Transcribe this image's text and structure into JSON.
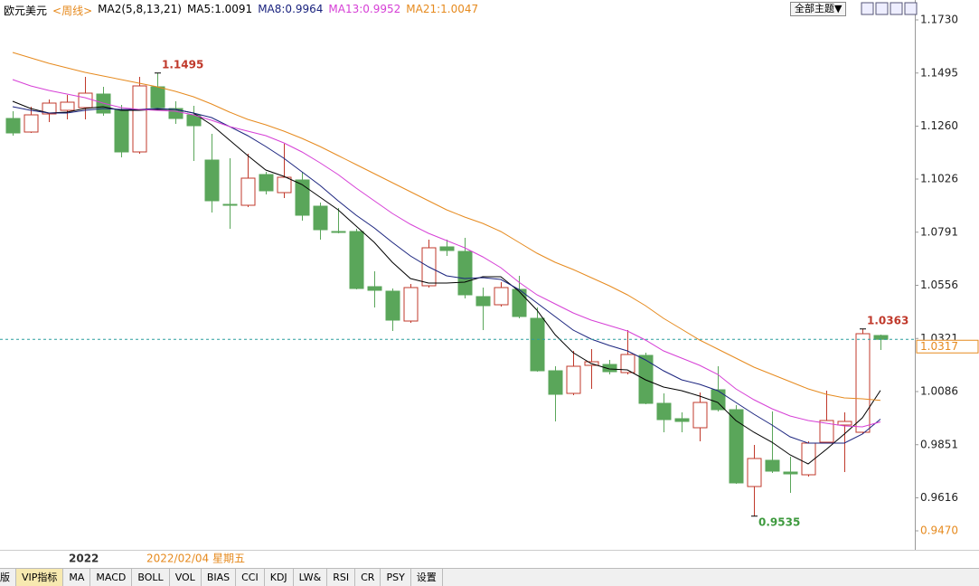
{
  "header": {
    "symbol": "欧元美元",
    "period": "<周线>",
    "indicator": "MA2(5,8,13,21)",
    "theme_button": "全部主题▼"
  },
  "chart_data": {
    "type": "candlestick",
    "categories": [
      null,
      null,
      null,
      null,
      null,
      null,
      null,
      null,
      null,
      null,
      null,
      null,
      null,
      null,
      null,
      null,
      null,
      null,
      null,
      null,
      null,
      null,
      null,
      null,
      null,
      null,
      null,
      null,
      null,
      null,
      null,
      null,
      null,
      null,
      null,
      null,
      null,
      null,
      null,
      null,
      null,
      null,
      null,
      null,
      null,
      null,
      null,
      null,
      null
    ],
    "open": [
      1.1294,
      1.1234,
      1.1314,
      1.133,
      1.1342,
      1.1402,
      1.1334,
      1.1146,
      1.1434,
      1.1338,
      1.131,
      1.111,
      1.0914,
      1.091,
      1.1046,
      1.0966,
      1.1022,
      1.0906,
      1.0794,
      1.0794,
      1.055,
      1.053,
      1.0398,
      1.0554,
      1.0726,
      1.0706,
      1.0506,
      1.047,
      1.0538,
      1.041,
      1.0178,
      1.0078,
      1.0202,
      1.0206,
      1.017,
      1.0246,
      1.0034,
      0.9966,
      0.9926,
      1.0094,
      1.0006,
      0.9666,
      0.9782,
      0.973,
      0.9718,
      0.9862,
      0.9938,
      0.9906,
      1.0334
    ],
    "close": [
      1.123,
      1.131,
      1.1362,
      1.1366,
      1.1406,
      1.1318,
      1.1146,
      1.1438,
      1.1342,
      1.1294,
      1.1262,
      1.093,
      1.091,
      1.103,
      1.0974,
      1.1034,
      1.0866,
      1.0802,
      1.079,
      1.0542,
      1.0534,
      1.0402,
      1.0546,
      1.0722,
      1.071,
      1.0514,
      1.0466,
      1.0546,
      1.0418,
      1.0178,
      1.0074,
      1.0198,
      1.0218,
      1.0174,
      1.025,
      1.0034,
      0.9962,
      0.9954,
      1.0038,
      1.0006,
      0.9682,
      0.979,
      0.9734,
      0.9722,
      0.9858,
      0.9958,
      0.9954,
      1.0342,
      1.0317
    ],
    "high": [
      1.1326,
      1.1346,
      1.1378,
      1.1398,
      1.1478,
      1.1434,
      1.1354,
      1.1478,
      1.1495,
      1.137,
      1.135,
      1.1226,
      1.1118,
      1.1138,
      1.1058,
      1.1182,
      1.1058,
      1.0922,
      1.0898,
      1.0806,
      1.0618,
      1.0542,
      1.0562,
      1.0758,
      1.0758,
      1.0766,
      1.0546,
      1.057,
      1.0598,
      1.0458,
      1.0198,
      1.0266,
      1.0274,
      1.0226,
      1.0358,
      1.0258,
      1.0078,
      0.9994,
      1.0082,
      1.0198,
      1.0026,
      0.985,
      0.9998,
      0.9798,
      0.9866,
      1.009,
      0.9994,
      1.0363,
      1.0338
    ],
    "low": [
      1.1218,
      1.123,
      1.1278,
      1.129,
      1.129,
      1.1306,
      1.1122,
      1.1138,
      1.133,
      1.127,
      1.1106,
      1.0878,
      1.0806,
      1.0902,
      1.0958,
      1.0942,
      1.0842,
      1.0758,
      1.0786,
      1.0538,
      1.0458,
      1.0354,
      1.039,
      1.0546,
      1.0686,
      1.0498,
      1.0358,
      1.0462,
      1.041,
      1.0174,
      0.9954,
      1.007,
      1.0098,
      1.0162,
      1.0162,
      1.003,
      0.9906,
      0.9906,
      0.9866,
      0.9998,
      0.9678,
      0.9535,
      0.9726,
      0.9638,
      0.971,
      0.9858,
      0.973,
      0.9898,
      1.027
    ],
    "up_color": "#c0392b",
    "down_color": "#5aa65a",
    "series": [
      {
        "name": "MA5:1.0091",
        "color": "#000000",
        "values": [
          1.137,
          1.1338,
          1.1318,
          1.1322,
          1.1338,
          1.1346,
          1.133,
          1.133,
          1.1334,
          1.1334,
          1.1318,
          1.1266,
          1.1198,
          1.113,
          1.1066,
          1.1038,
          1.1002,
          1.0946,
          1.089,
          1.0818,
          1.0746,
          1.0658,
          1.0586,
          1.0566,
          1.0566,
          1.057,
          1.0594,
          1.0594,
          1.053,
          1.0446,
          1.0338,
          1.0258,
          1.021,
          1.0186,
          1.0182,
          1.0138,
          1.0106,
          1.009,
          1.0066,
          1.0038,
          0.9958,
          0.9906,
          0.9862,
          0.9806,
          0.9766,
          0.983,
          0.9898,
          0.997,
          1.0091
        ]
      },
      {
        "name": "MA8:0.9964",
        "color": "#1a237e",
        "values": [
          1.1346,
          1.133,
          1.1318,
          1.1318,
          1.133,
          1.1338,
          1.1334,
          1.1334,
          1.1338,
          1.1334,
          1.1318,
          1.1298,
          1.1258,
          1.1218,
          1.117,
          1.1118,
          1.1058,
          1.0998,
          1.093,
          1.0866,
          1.081,
          1.0746,
          1.0686,
          1.0638,
          1.0598,
          1.0586,
          1.059,
          1.0582,
          1.0538,
          1.0478,
          1.0418,
          1.0358,
          1.0318,
          1.029,
          1.0266,
          1.0226,
          1.0178,
          1.0138,
          1.0118,
          1.009,
          1.0038,
          0.9986,
          0.9938,
          0.9886,
          0.9858,
          0.9858,
          0.9858,
          0.9898,
          0.9964
        ]
      },
      {
        "name": "MA13:0.9952",
        "color": "#d63fd6",
        "values": [
          1.1466,
          1.1438,
          1.1418,
          1.1402,
          1.1386,
          1.1362,
          1.1342,
          1.1334,
          1.133,
          1.1326,
          1.131,
          1.1286,
          1.1258,
          1.1238,
          1.1218,
          1.1186,
          1.1146,
          1.1098,
          1.1046,
          1.0986,
          1.093,
          1.0874,
          1.0826,
          1.0786,
          1.0754,
          1.0722,
          1.0682,
          1.0634,
          1.057,
          1.0514,
          1.0474,
          1.0434,
          1.0402,
          1.0378,
          1.0354,
          1.0314,
          1.0266,
          1.0234,
          1.0202,
          1.0162,
          1.0098,
          1.005,
          1.001,
          0.9978,
          0.9958,
          0.9946,
          0.9934,
          0.993,
          0.9952
        ]
      },
      {
        "name": "MA21:1.0047",
        "color": "#e68a1e",
        "values": [
          1.1586,
          1.1562,
          1.1538,
          1.1518,
          1.1498,
          1.1482,
          1.1466,
          1.145,
          1.1434,
          1.1414,
          1.139,
          1.1358,
          1.1322,
          1.129,
          1.1266,
          1.1238,
          1.1206,
          1.117,
          1.113,
          1.109,
          1.105,
          1.101,
          1.097,
          1.093,
          1.089,
          1.0858,
          1.083,
          1.0794,
          1.0746,
          1.0698,
          1.0658,
          1.0626,
          1.059,
          1.0554,
          1.0514,
          1.0466,
          1.041,
          1.0362,
          1.0314,
          1.0274,
          1.0234,
          1.0194,
          1.0162,
          1.013,
          1.0098,
          1.0074,
          1.0058,
          1.0054,
          1.0047
        ]
      }
    ],
    "annotations": [
      {
        "text": "1.1495",
        "value": 1.1495
      },
      {
        "text": "0.9535",
        "value": 0.9535
      },
      {
        "text": "1.0363",
        "value": 1.0363
      }
    ],
    "last_price": {
      "value": 1.0317,
      "label": "1.0317"
    },
    "ylim": [
      0.9386,
      1.1818
    ],
    "yticks": [
      {
        "value": 1.173,
        "label": "1.1730"
      },
      {
        "value": 1.1495,
        "label": "1.1495"
      },
      {
        "value": 1.126,
        "label": "1.1260"
      },
      {
        "value": 1.1026,
        "label": "1.1026"
      },
      {
        "value": 1.0791,
        "label": "1.0791"
      },
      {
        "value": 1.0556,
        "label": "1.0556"
      },
      {
        "value": 1.0321,
        "label": "1.0321"
      },
      {
        "value": 1.0086,
        "label": "1.0086"
      },
      {
        "value": 0.9851,
        "label": "0.9851"
      },
      {
        "value": 0.9616,
        "label": "0.9616"
      },
      {
        "value": 0.947,
        "label": "0.9470"
      }
    ],
    "year_label": "2022",
    "cursor_date": "2022/02/04 星期五"
  },
  "tabs": [
    "版",
    "VIP指标",
    "MA",
    "MACD",
    "BOLL",
    "VOL",
    "BIAS",
    "CCI",
    "KDJ",
    "LW&",
    "RSI",
    "CR",
    "PSY",
    "设置"
  ]
}
